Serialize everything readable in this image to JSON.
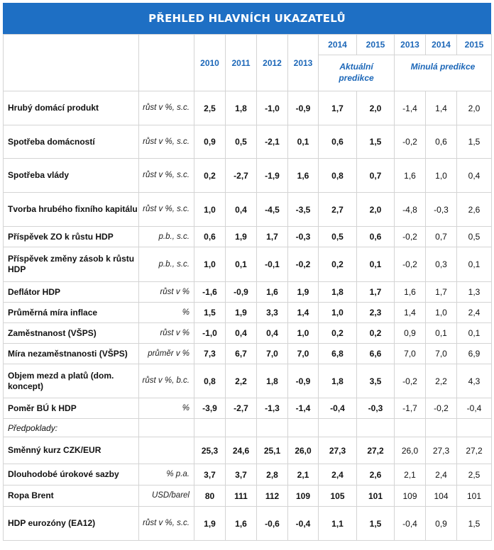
{
  "title": "PŘEHLED HLAVNÍCH UKAZATELŮ",
  "years_top": [
    "2014",
    "2015",
    "2013",
    "2014",
    "2015"
  ],
  "years_main": [
    "2010",
    "2011",
    "2012",
    "2013"
  ],
  "group_current": "Aktuální predikce",
  "group_previous": "Minulá predikce",
  "rows": [
    {
      "label": "Hrubý domácí produkt",
      "unit": "růst v %, s.c.",
      "values": [
        "2,5",
        "1,8",
        "-1,0",
        "-0,9",
        "1,7",
        "2,0",
        "-1,4",
        "1,4",
        "2,0"
      ]
    },
    {
      "label": "Spotřeba domácností",
      "unit": "růst v %, s.c.",
      "values": [
        "0,9",
        "0,5",
        "-2,1",
        "0,1",
        "0,6",
        "1,5",
        "-0,2",
        "0,6",
        "1,5"
      ]
    },
    {
      "label": "Spotřeba vlády",
      "unit": "růst v %, s.c.",
      "values": [
        "0,2",
        "-2,7",
        "-1,9",
        "1,6",
        "0,8",
        "0,7",
        "1,6",
        "1,0",
        "0,4"
      ]
    },
    {
      "label": "Tvorba hrubého fixního kapitálu",
      "unit": "růst v %, s.c.",
      "values": [
        "1,0",
        "0,4",
        "-4,5",
        "-3,5",
        "2,7",
        "2,0",
        "-4,8",
        "-0,3",
        "2,6"
      ]
    },
    {
      "label": "Příspěvek ZO k růstu HDP",
      "unit": "p.b., s.c.",
      "values": [
        "0,6",
        "1,9",
        "1,7",
        "-0,3",
        "0,5",
        "0,6",
        "-0,2",
        "0,7",
        "0,5"
      ]
    },
    {
      "label": "Příspěvek změny zásob k růstu HDP",
      "unit": "p.b., s.c.",
      "values": [
        "1,0",
        "0,1",
        "-0,1",
        "-0,2",
        "0,2",
        "0,1",
        "-0,2",
        "0,3",
        "0,1"
      ]
    },
    {
      "label": "Deflátor HDP",
      "unit": "růst v %",
      "values": [
        "-1,6",
        "-0,9",
        "1,6",
        "1,9",
        "1,8",
        "1,7",
        "1,6",
        "1,7",
        "1,3"
      ]
    },
    {
      "label": "Průměrná míra inflace",
      "unit": "%",
      "values": [
        "1,5",
        "1,9",
        "3,3",
        "1,4",
        "1,0",
        "2,3",
        "1,4",
        "1,0",
        "2,4"
      ]
    },
    {
      "label": "Zaměstnanost (VŠPS)",
      "unit": "růst v %",
      "values": [
        "-1,0",
        "0,4",
        "0,4",
        "1,0",
        "0,2",
        "0,2",
        "0,9",
        "0,1",
        "0,1"
      ]
    },
    {
      "label": "Míra nezaměstnanosti (VŠPS)",
      "unit": "průměr v %",
      "values": [
        "7,3",
        "6,7",
        "7,0",
        "7,0",
        "6,8",
        "6,6",
        "7,0",
        "7,0",
        "6,9"
      ]
    },
    {
      "label": "Objem mezd a platů (dom. koncept)",
      "unit": "růst v %, b.c.",
      "values": [
        "0,8",
        "2,2",
        "1,8",
        "-0,9",
        "1,8",
        "3,5",
        "-0,2",
        "2,2",
        "4,3"
      ]
    },
    {
      "label": "Poměr BÚ k HDP",
      "unit": "%",
      "values": [
        "-3,9",
        "-2,7",
        "-1,3",
        "-1,4",
        "-0,4",
        "-0,3",
        "-1,7",
        "-0,2",
        "-0,4"
      ]
    }
  ],
  "assumptions_label": "Předpoklady:",
  "assumption_rows": [
    {
      "label": "Směnný kurz CZK/EUR",
      "unit": "",
      "values": [
        "25,3",
        "24,6",
        "25,1",
        "26,0",
        "27,3",
        "27,2",
        "26,0",
        "27,3",
        "27,2"
      ]
    },
    {
      "label": "Dlouhodobé úrokové sazby",
      "unit": "% p.a.",
      "values": [
        "3,7",
        "3,7",
        "2,8",
        "2,1",
        "2,4",
        "2,6",
        "2,1",
        "2,4",
        "2,5"
      ]
    },
    {
      "label": "Ropa Brent",
      "unit": "USD/barel",
      "values": [
        "80",
        "111",
        "112",
        "109",
        "105",
        "101",
        "109",
        "104",
        "101"
      ]
    },
    {
      "label": "HDP eurozóny (EA12)",
      "unit": "růst v %, s.c.",
      "values": [
        "1,9",
        "1,6",
        "-0,6",
        "-0,4",
        "1,1",
        "1,5",
        "-0,4",
        "0,9",
        "1,5"
      ]
    }
  ]
}
